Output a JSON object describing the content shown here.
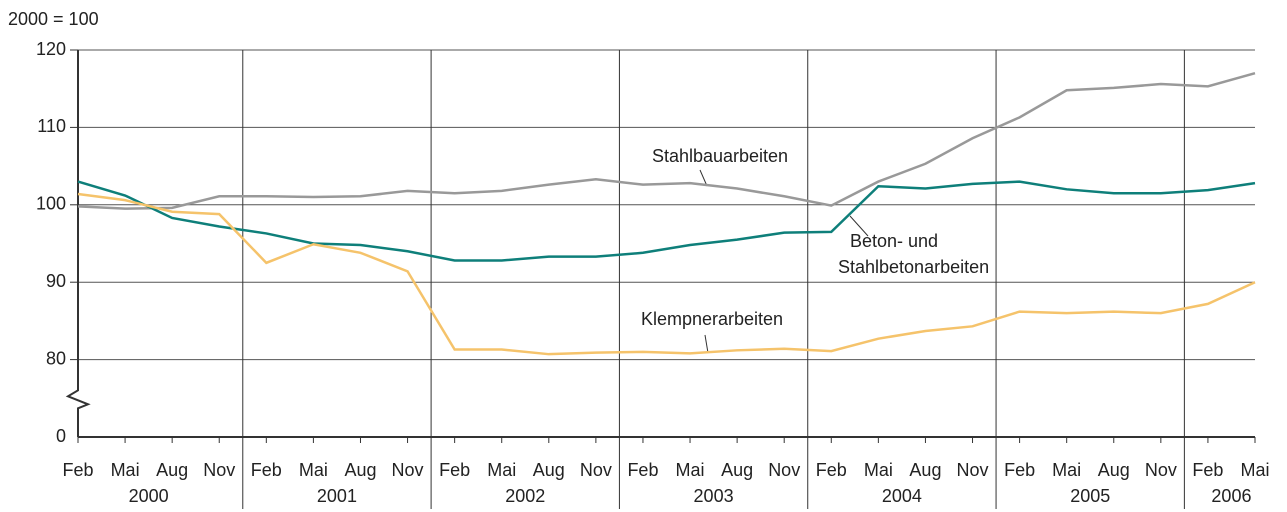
{
  "chart_data": {
    "type": "line",
    "y_label": "2000 = 100",
    "categories": [
      "Feb",
      "Mai",
      "Aug",
      "Nov",
      "Feb",
      "Mai",
      "Aug",
      "Nov",
      "Feb",
      "Mai",
      "Aug",
      "Nov",
      "Feb",
      "Mai",
      "Aug",
      "Nov",
      "Feb",
      "Mai",
      "Aug",
      "Nov",
      "Feb",
      "Mai",
      "Aug",
      "Nov",
      "Feb",
      "Mai"
    ],
    "years": [
      "2000",
      "2001",
      "2002",
      "2003",
      "2004",
      "2005",
      "2006"
    ],
    "series": [
      {
        "name": "Stahlbauarbeiten",
        "color": "#999999",
        "values": [
          99.8,
          99.5,
          99.6,
          101.1,
          101.1,
          101.0,
          101.1,
          101.8,
          101.5,
          101.8,
          102.6,
          103.3,
          102.6,
          102.8,
          102.1,
          101.1,
          99.9,
          103.0,
          105.3,
          108.6,
          111.3,
          114.8,
          115.1,
          115.6,
          115.3,
          117.0
        ]
      },
      {
        "name": "Beton- und Stahlbetonarbeiten",
        "color": "#0e7f7a",
        "values": [
          103.0,
          101.2,
          98.3,
          97.2,
          96.3,
          95.0,
          94.8,
          94.0,
          92.8,
          92.8,
          93.3,
          93.3,
          93.8,
          94.8,
          95.5,
          96.4,
          96.5,
          102.4,
          102.1,
          102.7,
          103.0,
          102.0,
          101.5,
          101.5,
          101.9,
          102.8
        ]
      },
      {
        "name": "Klempnerarbeiten",
        "color": "#f5c36b",
        "values": [
          101.4,
          100.6,
          99.1,
          98.8,
          92.5,
          94.9,
          93.8,
          91.4,
          81.3,
          81.3,
          80.7,
          80.9,
          81.0,
          80.8,
          81.2,
          81.4,
          81.1,
          82.7,
          83.7,
          84.3,
          86.2,
          86.0,
          86.2,
          86.0,
          87.2,
          90.0
        ]
      }
    ],
    "ylim": [
      0,
      120
    ],
    "yticks": [
      0,
      80,
      90,
      100,
      110,
      120
    ],
    "axis_break": [
      0,
      80
    ],
    "grid": true
  }
}
